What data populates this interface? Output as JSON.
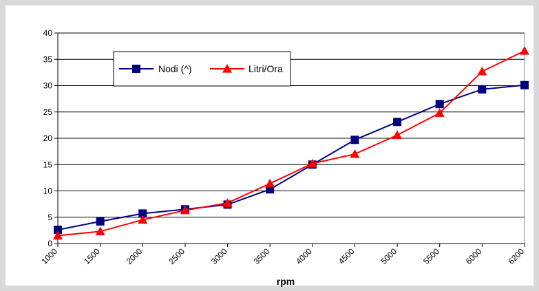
{
  "chart_data": {
    "type": "line",
    "title": "",
    "xlabel": "rpm",
    "ylabel": "",
    "categories": [
      "1000",
      "1500",
      "2000",
      "2500",
      "3000",
      "3500",
      "4000",
      "4500",
      "5000",
      "5500",
      "6000",
      "6200"
    ],
    "ylim": [
      0,
      40
    ],
    "yticks": [
      0,
      5,
      10,
      15,
      20,
      25,
      30,
      35,
      40
    ],
    "grid": true,
    "legend_position": "top-left",
    "series": [
      {
        "name": "Nodi (^)",
        "color": "#000080",
        "marker": "square",
        "values": [
          2.6,
          4.2,
          5.7,
          6.5,
          7.4,
          10.3,
          15.0,
          19.7,
          23.1,
          26.5,
          29.3,
          30.1
        ]
      },
      {
        "name": "Litri/Ora",
        "color": "#ff0000",
        "marker": "triangle",
        "values": [
          1.5,
          2.3,
          4.5,
          6.3,
          7.7,
          11.4,
          15.2,
          17.0,
          20.6,
          24.8,
          32.7,
          36.6
        ]
      }
    ]
  }
}
